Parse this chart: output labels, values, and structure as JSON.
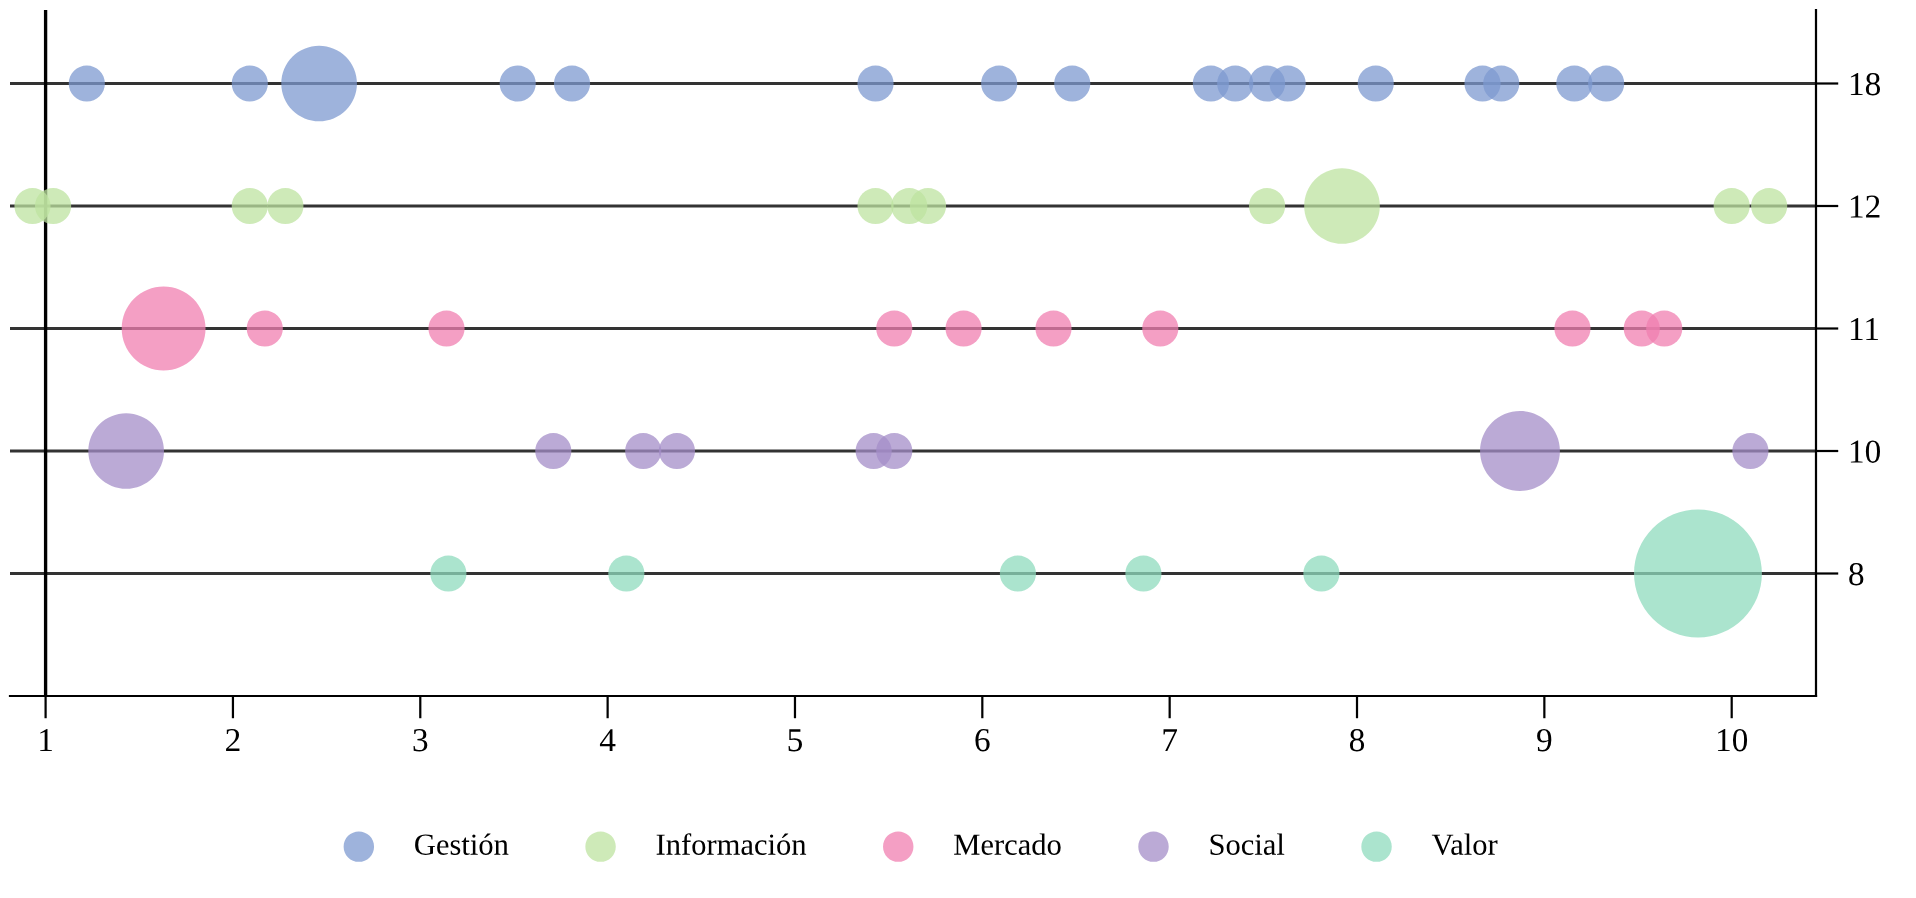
{
  "chart_data": {
    "type": "bubble",
    "orientation": "horizontal",
    "categories": [
      "18",
      "12",
      "11",
      "10",
      "8"
    ],
    "xlim": [
      0.81,
      10.45
    ],
    "xticks": [
      1,
      2,
      3,
      4,
      5,
      6,
      7,
      8,
      9,
      10
    ],
    "grid": "y",
    "legend": "bottom",
    "ref_lines": [
      {
        "axis": "x",
        "value": 1,
        "color": "#000000"
      }
    ],
    "marker": "circle",
    "series": [
      {
        "name": "Gestión",
        "color": "#7d9ad0",
        "x": [
          "18",
          "18",
          "18",
          "18",
          "18",
          "18",
          "18",
          "18",
          "18",
          "18",
          "18",
          "18",
          "18",
          "18",
          "18",
          "18",
          "18"
        ],
        "values": [
          1.22,
          2.09,
          2.46,
          3.52,
          3.81,
          5.43,
          6.09,
          6.48,
          7.22,
          7.35,
          7.52,
          7.63,
          8.1,
          8.67,
          8.77,
          9.16,
          9.33
        ],
        "sizes": [
          0.08,
          0.08,
          0.35,
          0.08,
          0.08,
          0.08,
          0.08,
          0.08,
          0.08,
          0.08,
          0.08,
          0.08,
          0.08,
          0.08,
          0.08,
          0.08,
          0.08
        ]
      },
      {
        "name": "Información",
        "color": "#bde3a0",
        "x": [
          "12",
          "12",
          "12",
          "12",
          "12",
          "12",
          "12",
          "12",
          "12",
          "12",
          "12"
        ],
        "values": [
          0.93,
          1.04,
          2.09,
          2.28,
          5.43,
          5.61,
          5.71,
          7.52,
          7.92,
          10.0,
          10.2
        ],
        "sizes": [
          0.08,
          0.08,
          0.08,
          0.08,
          0.08,
          0.08,
          0.08,
          0.08,
          0.35,
          0.08,
          0.08
        ]
      },
      {
        "name": "Mercado",
        "color": "#f07fb0",
        "x": [
          "11",
          "11",
          "11",
          "11",
          "11",
          "11",
          "11",
          "11",
          "11",
          "11"
        ],
        "values": [
          1.63,
          2.17,
          3.14,
          5.53,
          5.9,
          6.38,
          6.95,
          9.15,
          9.52,
          9.64
        ],
        "sizes": [
          0.43,
          0.08,
          0.08,
          0.08,
          0.08,
          0.08,
          0.08,
          0.08,
          0.08,
          0.08
        ]
      },
      {
        "name": "Social",
        "color": "#a48dc8",
        "x": [
          "10",
          "10",
          "10",
          "10",
          "10",
          "10",
          "10",
          "10"
        ],
        "values": [
          1.43,
          3.71,
          4.19,
          4.37,
          5.42,
          5.53,
          8.87,
          10.1
        ],
        "sizes": [
          0.35,
          0.08,
          0.08,
          0.08,
          0.08,
          0.08,
          0.39,
          0.08
        ]
      },
      {
        "name": "Valor",
        "color": "#8fdbbd",
        "x": [
          "8",
          "8",
          "8",
          "8",
          "8",
          "8"
        ],
        "values": [
          3.15,
          4.1,
          6.19,
          6.86,
          7.81,
          9.82
        ],
        "sizes": [
          0.08,
          0.08,
          0.08,
          0.08,
          0.08,
          1
        ]
      }
    ]
  }
}
